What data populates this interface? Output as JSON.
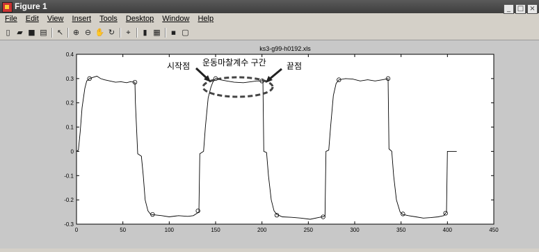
{
  "window": {
    "title": "Figure 1"
  },
  "menu": [
    "File",
    "Edit",
    "View",
    "Insert",
    "Tools",
    "Desktop",
    "Window",
    "Help"
  ],
  "toolbar": {
    "icons": [
      "new-file-icon",
      "open-file-icon",
      "save-icon",
      "print-icon",
      "arrow-cursor-icon",
      "zoom-in-icon",
      "zoom-out-icon",
      "pan-hand-icon",
      "rotate-3d-icon",
      "data-cursor-icon",
      "colorbar-icon",
      "legend-icon",
      "hide-plot-tools-icon",
      "show-plot-tools-icon"
    ]
  },
  "annotations": {
    "start": "시작점",
    "section": "운동마찰계수 구간",
    "end": "끝점"
  },
  "chart_data": {
    "type": "line",
    "title": "ks3-g99-h0192.xls",
    "xlim": [
      0,
      450
    ],
    "ylim": [
      -0.3,
      0.4
    ],
    "xticks": [
      0,
      50,
      100,
      150,
      200,
      250,
      300,
      350,
      400,
      450
    ],
    "yticks": [
      -0.3,
      -0.2,
      -0.1,
      0,
      0.1,
      0.2,
      0.3,
      0.4
    ],
    "grid": false,
    "series": [
      {
        "color": "#000000",
        "points": [
          [
            0,
            0
          ],
          [
            2,
            0.005
          ],
          [
            4,
            0.08
          ],
          [
            6,
            0.18
          ],
          [
            9,
            0.26
          ],
          [
            11,
            0.29
          ],
          [
            14,
            0.3
          ],
          [
            18,
            0.305
          ],
          [
            22,
            0.31
          ],
          [
            26,
            0.3
          ],
          [
            30,
            0.295
          ],
          [
            36,
            0.29
          ],
          [
            42,
            0.285
          ],
          [
            48,
            0.287
          ],
          [
            54,
            0.283
          ],
          [
            58,
            0.287
          ],
          [
            63,
            0.285
          ],
          [
            63.5,
            0.2
          ],
          [
            66,
            -0.01
          ],
          [
            70,
            -0.02
          ],
          [
            72,
            -0.1
          ],
          [
            74,
            -0.2
          ],
          [
            77,
            -0.245
          ],
          [
            80,
            -0.26
          ],
          [
            85,
            -0.262
          ],
          [
            92,
            -0.265
          ],
          [
            100,
            -0.27
          ],
          [
            110,
            -0.265
          ],
          [
            120,
            -0.268
          ],
          [
            126,
            -0.265
          ],
          [
            132,
            -0.25
          ],
          [
            133,
            -0.01
          ],
          [
            137,
            0.0
          ],
          [
            139,
            0.1
          ],
          [
            142,
            0.22
          ],
          [
            145,
            0.265
          ],
          [
            147,
            0.285
          ],
          [
            150,
            0.3
          ],
          [
            155,
            0.295
          ],
          [
            162,
            0.29
          ],
          [
            170,
            0.285
          ],
          [
            180,
            0.283
          ],
          [
            188,
            0.287
          ],
          [
            194,
            0.29
          ],
          [
            200,
            0.29
          ],
          [
            201,
            0.3
          ],
          [
            202,
            0.0
          ],
          [
            205,
            -0.005
          ],
          [
            207,
            -0.1
          ],
          [
            210,
            -0.2
          ],
          [
            213,
            -0.245
          ],
          [
            216,
            -0.26
          ],
          [
            222,
            -0.27
          ],
          [
            232,
            -0.272
          ],
          [
            242,
            -0.275
          ],
          [
            252,
            -0.28
          ],
          [
            262,
            -0.272
          ],
          [
            266,
            -0.27
          ],
          [
            268,
            -0.265
          ],
          [
            269,
            0.0
          ],
          [
            272,
            0.005
          ],
          [
            274,
            0.1
          ],
          [
            277,
            0.23
          ],
          [
            280,
            0.28
          ],
          [
            283,
            0.295
          ],
          [
            290,
            0.3
          ],
          [
            298,
            0.298
          ],
          [
            306,
            0.29
          ],
          [
            314,
            0.295
          ],
          [
            322,
            0.29
          ],
          [
            330,
            0.295
          ],
          [
            336,
            0.3
          ],
          [
            337,
            0.01
          ],
          [
            340,
            0.0
          ],
          [
            342,
            -0.1
          ],
          [
            345,
            -0.2
          ],
          [
            349,
            -0.25
          ],
          [
            352,
            -0.26
          ],
          [
            358,
            -0.265
          ],
          [
            366,
            -0.27
          ],
          [
            374,
            -0.275
          ],
          [
            382,
            -0.273
          ],
          [
            390,
            -0.27
          ],
          [
            396,
            -0.265
          ],
          [
            399,
            -0.25
          ],
          [
            400,
            0.0
          ],
          [
            410,
            0.0
          ]
        ]
      }
    ],
    "markers": [
      [
        14,
        0.3
      ],
      [
        63,
        0.285
      ],
      [
        82,
        -0.26
      ],
      [
        131,
        -0.245
      ],
      [
        150,
        0.3
      ],
      [
        200,
        0.29
      ],
      [
        216,
        -0.263
      ],
      [
        266,
        -0.27
      ],
      [
        283,
        0.295
      ],
      [
        336,
        0.3
      ],
      [
        352,
        -0.258
      ],
      [
        398,
        -0.255
      ]
    ]
  }
}
